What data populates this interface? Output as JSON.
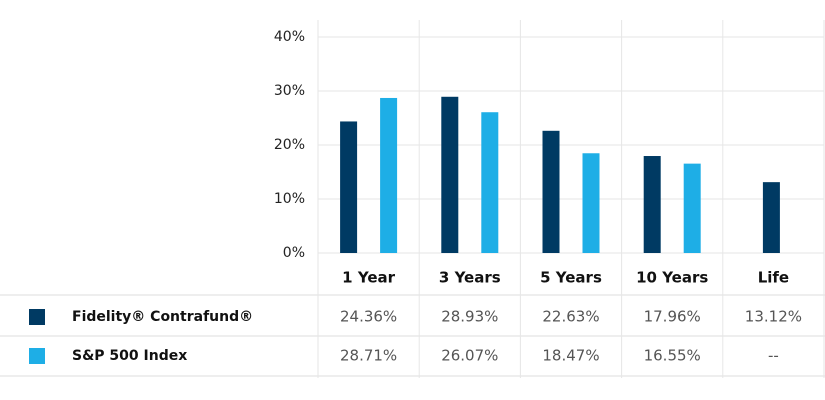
{
  "chart_data": {
    "type": "bar",
    "categories": [
      "1 Year",
      "3 Years",
      "5 Years",
      "10 Years",
      "Life"
    ],
    "series": [
      {
        "name": "Fidelity® Contrafund®",
        "color": "#003a63",
        "values": [
          24.36,
          28.93,
          22.63,
          17.96,
          13.12
        ],
        "value_labels": [
          "24.36%",
          "28.93%",
          "22.63%",
          "17.96%",
          "13.12%"
        ]
      },
      {
        "name": "S&P 500 Index",
        "color": "#1eaee6",
        "values": [
          28.71,
          26.07,
          18.47,
          16.55,
          null
        ],
        "value_labels": [
          "28.71%",
          "26.07%",
          "18.47%",
          "16.55%",
          "--"
        ]
      }
    ],
    "ylim": [
      0,
      40
    ],
    "yticks": [
      {
        "value": 0,
        "label": "0%"
      },
      {
        "value": 10,
        "label": "10%"
      },
      {
        "value": 20,
        "label": "20%"
      },
      {
        "value": 30,
        "label": "30%"
      },
      {
        "value": 40,
        "label": "40%"
      }
    ],
    "grid": true
  }
}
